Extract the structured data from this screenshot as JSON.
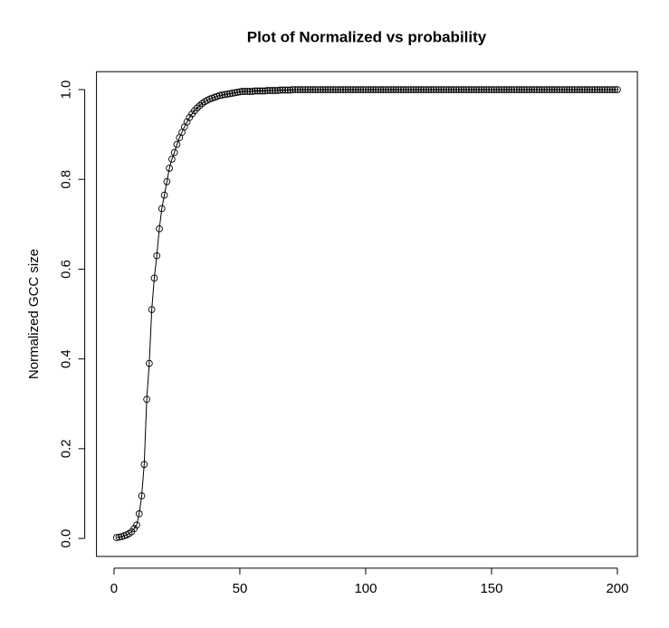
{
  "chart_data": {
    "type": "line",
    "title": "Plot of Normalized vs probability",
    "ylabel": "Normalized GCC size",
    "color": "#000000",
    "x": [
      1,
      2,
      3,
      4,
      5,
      6,
      7,
      8,
      9,
      10,
      11,
      12,
      13,
      14,
      15,
      16,
      17,
      18,
      19,
      20,
      21,
      22,
      23,
      24,
      25,
      26,
      27,
      28,
      29,
      30,
      31,
      32,
      33,
      34,
      35,
      36,
      37,
      38,
      39,
      40,
      41,
      42,
      43,
      44,
      45,
      46,
      47,
      48,
      49,
      50,
      51,
      52,
      53,
      54,
      55,
      56,
      57,
      58,
      59,
      60,
      61,
      62,
      63,
      64,
      65,
      66,
      67,
      68,
      69,
      70,
      71,
      72,
      73,
      74,
      75,
      76,
      77,
      78,
      79,
      80,
      81,
      82,
      83,
      84,
      85,
      86,
      87,
      88,
      89,
      90,
      91,
      92,
      93,
      94,
      95,
      96,
      97,
      98,
      99,
      100,
      101,
      102,
      103,
      104,
      105,
      106,
      107,
      108,
      109,
      110,
      111,
      112,
      113,
      114,
      115,
      116,
      117,
      118,
      119,
      120,
      121,
      122,
      123,
      124,
      125,
      126,
      127,
      128,
      129,
      130,
      131,
      132,
      133,
      134,
      135,
      136,
      137,
      138,
      139,
      140,
      141,
      142,
      143,
      144,
      145,
      146,
      147,
      148,
      149,
      150,
      151,
      152,
      153,
      154,
      155,
      156,
      157,
      158,
      159,
      160,
      161,
      162,
      163,
      164,
      165,
      166,
      167,
      168,
      169,
      170,
      171,
      172,
      173,
      174,
      175,
      176,
      177,
      178,
      179,
      180,
      181,
      182,
      183,
      184,
      185,
      186,
      187,
      188,
      189,
      190,
      191,
      192,
      193,
      194,
      195,
      196,
      197,
      198,
      199,
      200
    ],
    "values": [
      0.002,
      0.003,
      0.004,
      0.006,
      0.008,
      0.011,
      0.015,
      0.022,
      0.03,
      0.055,
      0.095,
      0.165,
      0.31,
      0.39,
      0.51,
      0.58,
      0.63,
      0.69,
      0.735,
      0.765,
      0.795,
      0.825,
      0.845,
      0.86,
      0.878,
      0.893,
      0.905,
      0.917,
      0.928,
      0.938,
      0.946,
      0.953,
      0.959,
      0.964,
      0.969,
      0.973,
      0.976,
      0.979,
      0.981,
      0.983,
      0.985,
      0.987,
      0.988,
      0.989,
      0.99,
      0.991,
      0.992,
      0.993,
      0.994,
      0.995,
      0.996,
      0.996,
      0.996,
      0.996,
      0.996,
      0.997,
      0.997,
      0.997,
      0.997,
      0.997,
      0.998,
      0.998,
      0.998,
      0.998,
      0.998,
      0.999,
      0.999,
      0.999,
      0.999,
      0.999,
      1,
      1,
      1,
      1,
      1,
      1,
      1,
      1,
      1,
      1,
      1,
      1,
      1,
      1,
      1,
      1,
      1,
      1,
      1,
      1,
      1,
      1,
      1,
      1,
      1,
      1,
      1,
      1,
      1,
      1,
      1,
      1,
      1,
      1,
      1,
      1,
      1,
      1,
      1,
      1,
      1,
      1,
      1,
      1,
      1,
      1,
      1,
      1,
      1,
      1,
      1,
      1,
      1,
      1,
      1,
      1,
      1,
      1,
      1,
      1,
      1,
      1,
      1,
      1,
      1,
      1,
      1,
      1,
      1,
      1,
      1,
      1,
      1,
      1,
      1,
      1,
      1,
      1,
      1,
      1,
      1,
      1,
      1,
      1,
      1,
      1,
      1,
      1,
      1,
      1,
      1,
      1,
      1,
      1,
      1,
      1,
      1,
      1,
      1,
      1,
      1,
      1,
      1,
      1,
      1,
      1,
      1,
      1,
      1,
      1,
      1,
      1,
      1,
      1,
      1,
      1,
      1,
      1,
      1,
      1,
      1,
      1,
      1,
      1,
      1,
      1,
      1,
      1,
      1,
      1
    ],
    "xlim": [
      -6.96,
      207.96
    ],
    "ylim": [
      -0.04,
      1.04
    ],
    "xticks": [
      0,
      50,
      100,
      150,
      200
    ],
    "yticks": [
      {
        "value": 0,
        "label": "0.0"
      },
      0.2,
      0.4,
      0.6,
      0.8,
      {
        "value": 1,
        "label": "1.0"
      }
    ]
  }
}
